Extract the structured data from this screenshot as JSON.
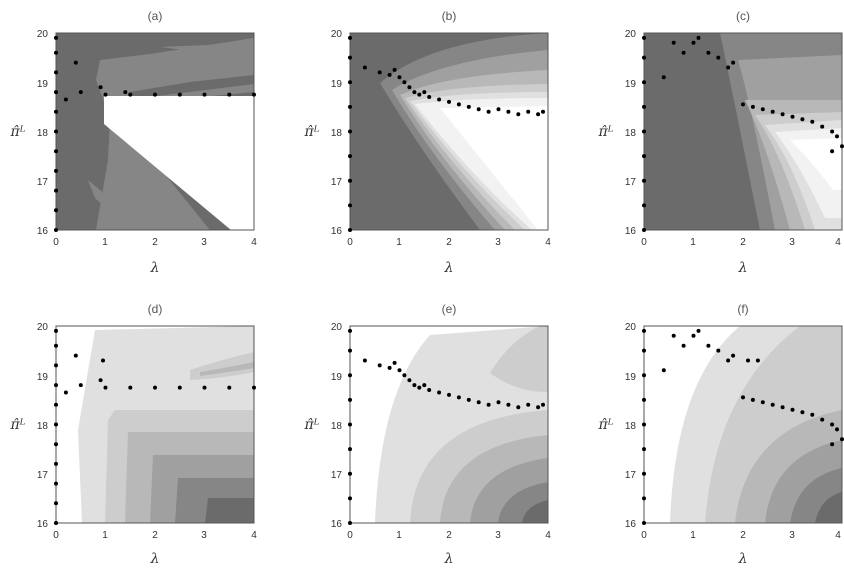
{
  "figure": {
    "panels": [
      "(a)",
      "(b)",
      "(c)",
      "(d)",
      "(e)",
      "(f)"
    ],
    "xlabel": "λ",
    "ylabel": "π̂ᴸ"
  },
  "colors": {
    "level1": "#6b6b6b",
    "level2": "#868686",
    "level3": "#a0a0a0",
    "level4": "#b8b8b8",
    "level5": "#cdcdcd",
    "level6": "#e0e0e0",
    "level7": "#f2f2f2",
    "white": "#ffffff",
    "points": "#000000"
  },
  "chart_data": [
    {
      "type": "contour",
      "panel": "(a)",
      "xlabel": "λ",
      "ylabel": "π̂ᴸ",
      "xlim": [
        0,
        4
      ],
      "ylim": [
        16,
        20
      ],
      "xticks": [
        "0",
        "1",
        "2",
        "3",
        "4"
      ],
      "yticks": [
        "16",
        "17",
        "18",
        "19",
        "20"
      ],
      "scatter_points": [
        [
          0.0,
          16.0
        ],
        [
          0.0,
          16.4
        ],
        [
          0.0,
          16.8
        ],
        [
          0.0,
          17.2
        ],
        [
          0.0,
          17.6
        ],
        [
          0.0,
          18.0
        ],
        [
          0.0,
          18.4
        ],
        [
          0.0,
          18.8
        ],
        [
          0.0,
          19.2
        ],
        [
          0.0,
          19.6
        ],
        [
          0.0,
          19.9
        ],
        [
          0.2,
          18.65
        ],
        [
          0.4,
          19.4
        ],
        [
          0.5,
          18.8
        ],
        [
          0.9,
          18.9
        ],
        [
          1.4,
          18.8
        ],
        [
          1.0,
          18.75
        ],
        [
          1.5,
          18.75
        ],
        [
          2.0,
          18.75
        ],
        [
          2.5,
          18.75
        ],
        [
          3.0,
          18.75
        ],
        [
          3.5,
          18.75
        ],
        [
          4.0,
          18.75
        ]
      ]
    },
    {
      "type": "contour",
      "panel": "(b)",
      "xlabel": "λ",
      "ylabel": "π̂ᴸ",
      "xlim": [
        0,
        4
      ],
      "ylim": [
        16,
        20
      ],
      "xticks": [
        "0",
        "1",
        "2",
        "3",
        "4"
      ],
      "yticks": [
        "16",
        "17",
        "18",
        "19",
        "20"
      ],
      "scatter_points": [
        [
          0.0,
          16.0
        ],
        [
          0.0,
          16.5
        ],
        [
          0.0,
          17.0
        ],
        [
          0.0,
          17.5
        ],
        [
          0.0,
          18.0
        ],
        [
          0.0,
          18.5
        ],
        [
          0.0,
          19.0
        ],
        [
          0.0,
          19.5
        ],
        [
          0.0,
          19.9
        ],
        [
          0.3,
          19.3
        ],
        [
          0.6,
          19.2
        ],
        [
          0.8,
          19.15
        ],
        [
          0.9,
          19.25
        ],
        [
          1.0,
          19.1
        ],
        [
          1.1,
          19.0
        ],
        [
          1.2,
          18.9
        ],
        [
          1.3,
          18.8
        ],
        [
          1.4,
          18.75
        ],
        [
          1.5,
          18.8
        ],
        [
          1.6,
          18.7
        ],
        [
          1.8,
          18.65
        ],
        [
          2.0,
          18.6
        ],
        [
          2.2,
          18.55
        ],
        [
          2.4,
          18.5
        ],
        [
          2.6,
          18.45
        ],
        [
          2.8,
          18.4
        ],
        [
          3.0,
          18.45
        ],
        [
          3.2,
          18.4
        ],
        [
          3.4,
          18.35
        ],
        [
          3.6,
          18.4
        ],
        [
          3.8,
          18.35
        ],
        [
          3.9,
          18.4
        ]
      ]
    },
    {
      "type": "contour",
      "panel": "(c)",
      "xlabel": "λ",
      "ylabel": "π̂ᴸ",
      "xlim": [
        0,
        4
      ],
      "ylim": [
        16,
        20
      ],
      "xticks": [
        "0",
        "1",
        "2",
        "3",
        "4"
      ],
      "yticks": [
        "16",
        "17",
        "18",
        "19",
        "20"
      ],
      "scatter_points": [
        [
          0.0,
          16.0
        ],
        [
          0.0,
          16.5
        ],
        [
          0.0,
          17.0
        ],
        [
          0.0,
          17.5
        ],
        [
          0.0,
          18.0
        ],
        [
          0.0,
          18.5
        ],
        [
          0.0,
          19.0
        ],
        [
          0.0,
          19.5
        ],
        [
          0.0,
          19.9
        ],
        [
          0.4,
          19.1
        ],
        [
          0.6,
          19.8
        ],
        [
          0.8,
          19.6
        ],
        [
          1.0,
          19.8
        ],
        [
          1.1,
          19.9
        ],
        [
          1.3,
          19.6
        ],
        [
          1.5,
          19.5
        ],
        [
          1.7,
          19.3
        ],
        [
          1.8,
          19.4
        ],
        [
          2.0,
          18.55
        ],
        [
          2.2,
          18.5
        ],
        [
          2.4,
          18.45
        ],
        [
          2.6,
          18.4
        ],
        [
          2.8,
          18.35
        ],
        [
          3.0,
          18.3
        ],
        [
          3.2,
          18.25
        ],
        [
          3.4,
          18.2
        ],
        [
          3.6,
          18.1
        ],
        [
          3.8,
          18.0
        ],
        [
          3.9,
          17.9
        ],
        [
          4.0,
          17.7
        ],
        [
          3.8,
          17.6
        ]
      ]
    },
    {
      "type": "contour",
      "panel": "(d)",
      "xlabel": "λ",
      "ylabel": "π̂ᴸ",
      "xlim": [
        0,
        4
      ],
      "ylim": [
        16,
        20
      ],
      "xticks": [
        "0",
        "1",
        "2",
        "3",
        "4"
      ],
      "yticks": [
        "16",
        "17",
        "18",
        "19",
        "20"
      ],
      "scatter_points": [
        [
          0.0,
          16.0
        ],
        [
          0.0,
          16.4
        ],
        [
          0.0,
          16.8
        ],
        [
          0.0,
          17.2
        ],
        [
          0.0,
          17.6
        ],
        [
          0.0,
          18.0
        ],
        [
          0.0,
          18.4
        ],
        [
          0.0,
          18.8
        ],
        [
          0.0,
          19.2
        ],
        [
          0.0,
          19.6
        ],
        [
          0.0,
          19.9
        ],
        [
          0.2,
          18.65
        ],
        [
          0.4,
          19.4
        ],
        [
          0.5,
          18.8
        ],
        [
          0.9,
          18.9
        ],
        [
          0.95,
          19.3
        ],
        [
          1.0,
          18.75
        ],
        [
          1.5,
          18.75
        ],
        [
          2.0,
          18.75
        ],
        [
          2.5,
          18.75
        ],
        [
          3.0,
          18.75
        ],
        [
          3.5,
          18.75
        ],
        [
          4.0,
          18.75
        ]
      ]
    },
    {
      "type": "contour",
      "panel": "(e)",
      "xlabel": "λ",
      "ylabel": "π̂ᴸ",
      "xlim": [
        0,
        4
      ],
      "ylim": [
        16,
        20
      ],
      "xticks": [
        "0",
        "1",
        "2",
        "3",
        "4"
      ],
      "yticks": [
        "16",
        "17",
        "18",
        "19",
        "20"
      ],
      "scatter_points": [
        [
          0.0,
          16.0
        ],
        [
          0.0,
          16.5
        ],
        [
          0.0,
          17.0
        ],
        [
          0.0,
          17.5
        ],
        [
          0.0,
          18.0
        ],
        [
          0.0,
          18.5
        ],
        [
          0.0,
          19.0
        ],
        [
          0.0,
          19.5
        ],
        [
          0.0,
          19.9
        ],
        [
          0.3,
          19.3
        ],
        [
          0.6,
          19.2
        ],
        [
          0.8,
          19.15
        ],
        [
          0.9,
          19.25
        ],
        [
          1.0,
          19.1
        ],
        [
          1.1,
          19.0
        ],
        [
          1.2,
          18.9
        ],
        [
          1.3,
          18.8
        ],
        [
          1.4,
          18.75
        ],
        [
          1.5,
          18.8
        ],
        [
          1.6,
          18.7
        ],
        [
          1.8,
          18.65
        ],
        [
          2.0,
          18.6
        ],
        [
          2.2,
          18.55
        ],
        [
          2.4,
          18.5
        ],
        [
          2.6,
          18.45
        ],
        [
          2.8,
          18.4
        ],
        [
          3.0,
          18.45
        ],
        [
          3.2,
          18.4
        ],
        [
          3.4,
          18.35
        ],
        [
          3.6,
          18.4
        ],
        [
          3.8,
          18.35
        ],
        [
          3.9,
          18.4
        ]
      ]
    },
    {
      "type": "contour",
      "panel": "(f)",
      "xlabel": "λ",
      "ylabel": "π̂ᴸ",
      "xlim": [
        0,
        4
      ],
      "ylim": [
        16,
        20
      ],
      "xticks": [
        "0",
        "1",
        "2",
        "3",
        "4"
      ],
      "yticks": [
        "16",
        "17",
        "18",
        "19",
        "20"
      ],
      "scatter_points": [
        [
          0.0,
          16.0
        ],
        [
          0.0,
          16.5
        ],
        [
          0.0,
          17.0
        ],
        [
          0.0,
          17.5
        ],
        [
          0.0,
          18.0
        ],
        [
          0.0,
          18.5
        ],
        [
          0.0,
          19.0
        ],
        [
          0.0,
          19.5
        ],
        [
          0.0,
          19.9
        ],
        [
          0.4,
          19.1
        ],
        [
          0.6,
          19.8
        ],
        [
          0.8,
          19.6
        ],
        [
          1.0,
          19.8
        ],
        [
          1.1,
          19.9
        ],
        [
          1.3,
          19.6
        ],
        [
          1.5,
          19.5
        ],
        [
          1.7,
          19.3
        ],
        [
          1.8,
          19.4
        ],
        [
          2.1,
          19.3
        ],
        [
          2.3,
          19.3
        ],
        [
          2.0,
          18.55
        ],
        [
          2.2,
          18.5
        ],
        [
          2.4,
          18.45
        ],
        [
          2.6,
          18.4
        ],
        [
          2.8,
          18.35
        ],
        [
          3.0,
          18.3
        ],
        [
          3.2,
          18.25
        ],
        [
          3.4,
          18.2
        ],
        [
          3.6,
          18.1
        ],
        [
          3.8,
          18.0
        ],
        [
          3.9,
          17.9
        ],
        [
          4.0,
          17.7
        ],
        [
          3.8,
          17.6
        ]
      ]
    }
  ]
}
